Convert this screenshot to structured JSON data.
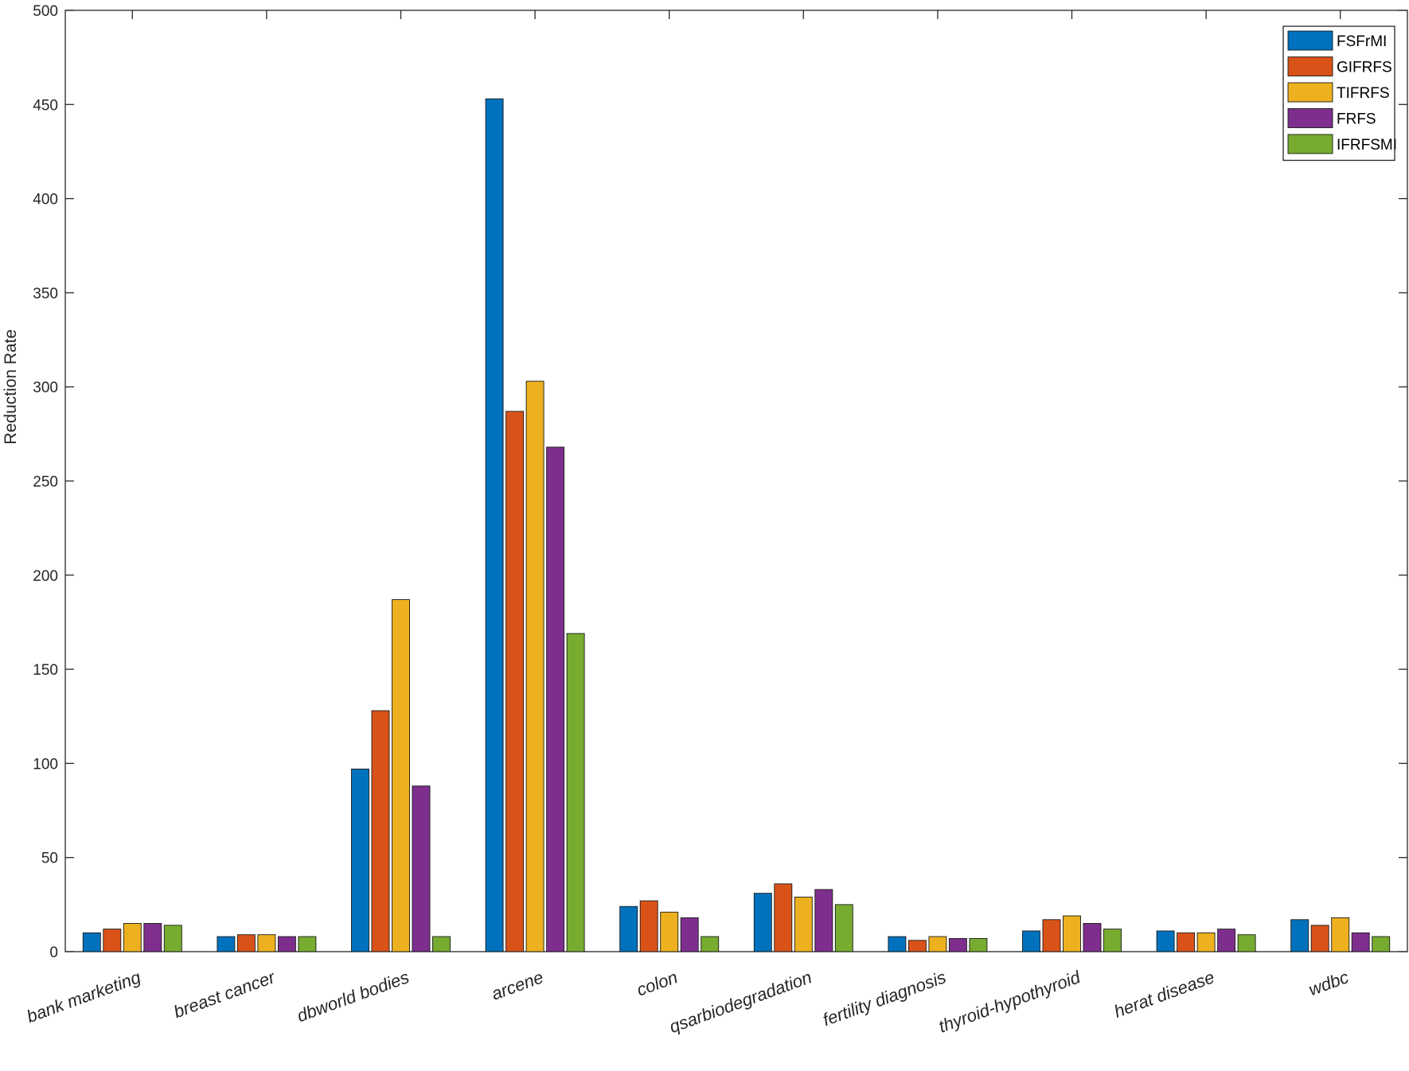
{
  "chart_data": {
    "type": "bar",
    "title": "",
    "xlabel": "",
    "ylabel": "Reduction Rate",
    "ylim": [
      0,
      500
    ],
    "yticks": [
      0,
      50,
      100,
      150,
      200,
      250,
      300,
      350,
      400,
      450,
      500
    ],
    "grid": false,
    "legend_position": "top-right",
    "categories": [
      "bank marketing",
      "breast cancer",
      "dbworld bodies",
      "arcene",
      "colon",
      "qsarbiodegradation",
      "fertility diagnosis",
      "thyroid-hypothyroid",
      "herat disease",
      "wdbc"
    ],
    "series": [
      {
        "name": "FSFrMI",
        "color": "#0072BD",
        "values": [
          10,
          8,
          97,
          453,
          24,
          31,
          8,
          11,
          11,
          17
        ]
      },
      {
        "name": "GIFRFS",
        "color": "#D95319",
        "values": [
          12,
          9,
          128,
          287,
          27,
          36,
          6,
          17,
          10,
          14
        ]
      },
      {
        "name": "TIFRFS",
        "color": "#EDB120",
        "values": [
          15,
          9,
          187,
          303,
          21,
          29,
          8,
          19,
          10,
          18
        ]
      },
      {
        "name": "FRFS",
        "color": "#7E2F8E",
        "values": [
          15,
          8,
          88,
          268,
          18,
          33,
          7,
          15,
          12,
          10
        ]
      },
      {
        "name": "IFRFSMI",
        "color": "#77AC30",
        "values": [
          14,
          8,
          8,
          169,
          8,
          25,
          7,
          12,
          9,
          8
        ]
      }
    ]
  }
}
